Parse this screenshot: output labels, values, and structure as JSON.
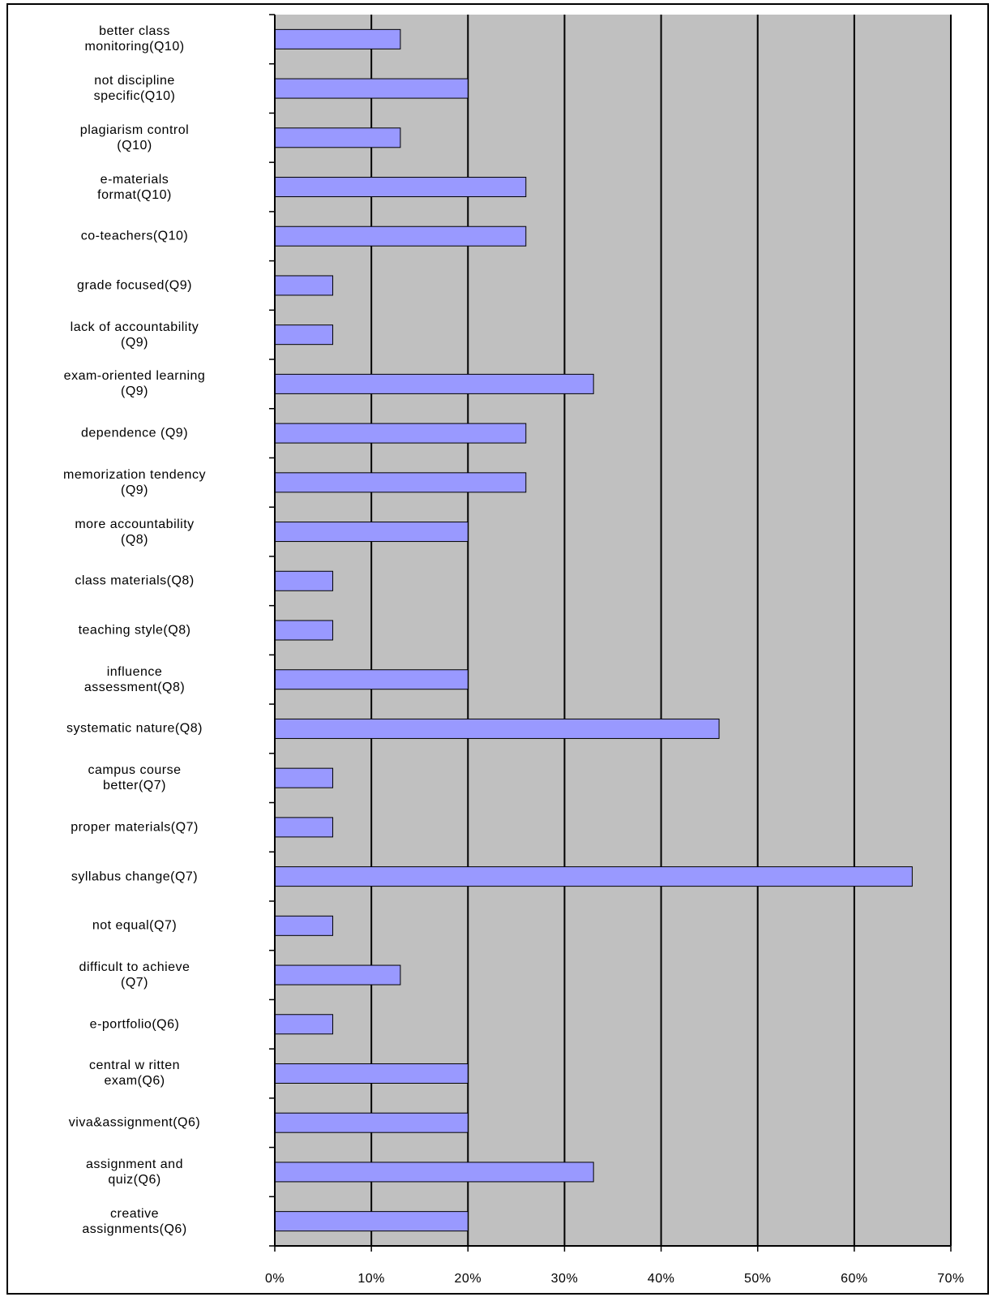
{
  "chart_data": {
    "type": "bar",
    "orientation": "horizontal",
    "categories": [
      "better class\nmonitoring(Q10)",
      "not discipline\nspecific(Q10)",
      "plagiarism control\n(Q10)",
      "e-materials\nformat(Q10)",
      "co-teachers(Q10)",
      "grade focused(Q9)",
      "lack of accountability\n(Q9)",
      "exam-oriented learning\n(Q9)",
      "dependence (Q9)",
      "memorization tendency\n(Q9)",
      "more accountability\n(Q8)",
      "class materials(Q8)",
      "teaching style(Q8)",
      "influence\nassessment(Q8)",
      "systematic nature(Q8)",
      "campus course\nbetter(Q7)",
      "proper materials(Q7)",
      "syllabus change(Q7)",
      "not equal(Q7)",
      "difficult to achieve\n(Q7)",
      "e-portfolio(Q6)",
      "central w ritten\nexam(Q6)",
      "viva&assignment(Q6)",
      "assignment and\nquiz(Q6)",
      "creative\nassignments(Q6)"
    ],
    "values": [
      13,
      20,
      13,
      26,
      26,
      6,
      6,
      33,
      26,
      26,
      20,
      6,
      6,
      20,
      46,
      6,
      6,
      66,
      6,
      13,
      6,
      20,
      20,
      33,
      20
    ],
    "color": "#9999ff",
    "xlim": [
      0,
      70
    ],
    "xticks": [
      {
        "value": 0,
        "label": "0%"
      },
      {
        "value": 10,
        "label": "10%"
      },
      {
        "value": 20,
        "label": "20%"
      },
      {
        "value": 30,
        "label": "30%"
      },
      {
        "value": 40,
        "label": "40%"
      },
      {
        "value": 50,
        "label": "50%"
      },
      {
        "value": 60,
        "label": "60%"
      },
      {
        "value": 70,
        "label": "70%"
      }
    ],
    "grid": true
  }
}
